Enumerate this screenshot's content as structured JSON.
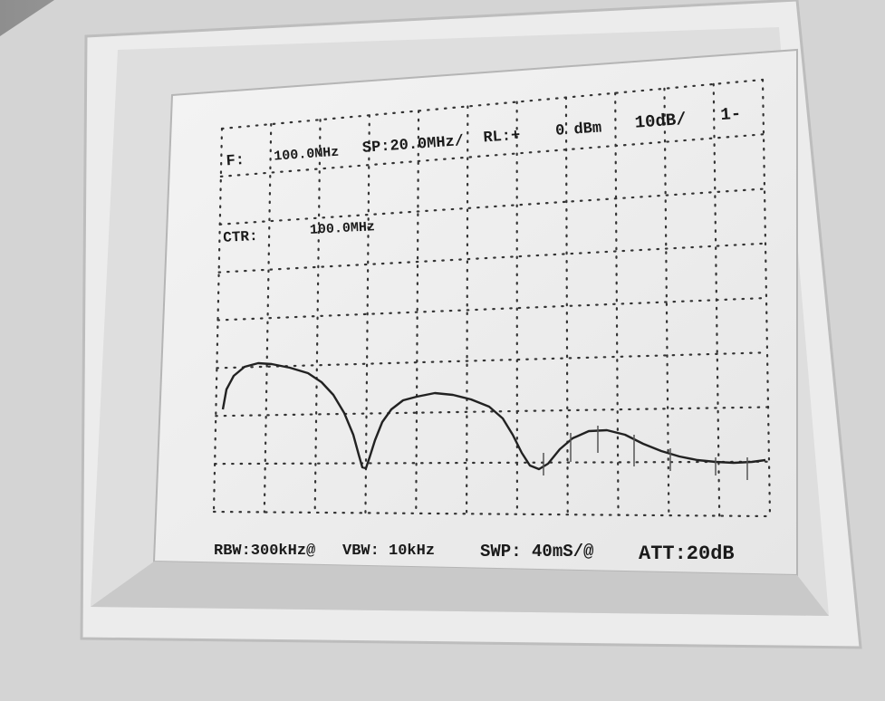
{
  "screen": {
    "header": {
      "frequency_label": "F:",
      "frequency": "100.0MHz",
      "span": "SP:20.0MHz/",
      "reference_level_label": "RL:+",
      "reference_level": "0 dBm",
      "scale": "10dB/",
      "mode": "1-"
    },
    "center": {
      "label": "CTR:",
      "value": "100.0MHz"
    },
    "footer": {
      "rbw": "RBW:300kHz@",
      "vbw": "VBW: 10kHz",
      "sweep": "SWP: 40mS/@",
      "attenuation": "ATT:20dB"
    }
  }
}
